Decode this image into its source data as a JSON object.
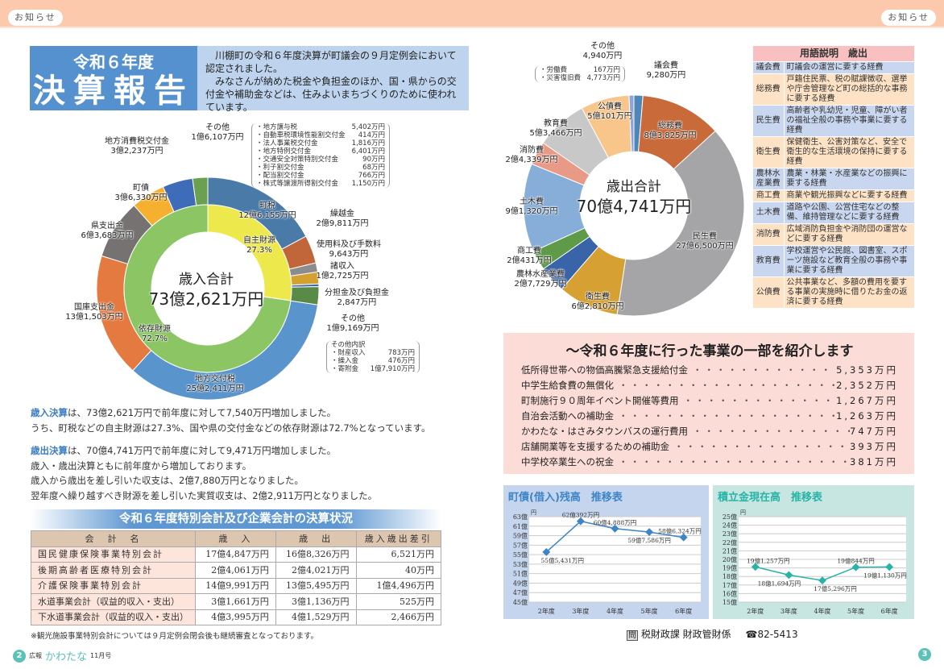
{
  "header": {
    "tag_left": "お知らせ",
    "tag_right": "お知らせ"
  },
  "title": {
    "line1": "令和６年度",
    "line2": "決算報告"
  },
  "intro": {
    "p1": "　川棚町の令和６年度決算が町議会の９月定例会において認定されました。",
    "p2": "　みなさんが納めた税金や負担金のほか、国・県からの交付金や補助金などは、住みよいまちづくりのために使われています。"
  },
  "revenue_chart": {
    "center_label": "歳入合計",
    "total": "73億2,621万円",
    "segments": [
      {
        "name": "町税",
        "value": 126155,
        "text": "12億6,155万円",
        "color": "#4a7aa8"
      },
      {
        "name": "繰越金",
        "value": 29811,
        "text": "2億9,811万円",
        "color": "#c0663a"
      },
      {
        "name": "使用料及び手数料",
        "value": 9643,
        "text": "9,643万円",
        "color": "#8c8c8c"
      },
      {
        "name": "諸収入",
        "value": 12725,
        "text": "1億2,725万円",
        "color": "#d4a030"
      },
      {
        "name": "分担金及び負担金",
        "value": 2847,
        "text": "2,847万円",
        "color": "#3a6ab0"
      },
      {
        "name": "その他",
        "value": 19169,
        "text": "1億9,169万円",
        "color": "#5a8a48"
      },
      {
        "name": "地方交付税",
        "value": 252411,
        "text": "25億2,411万円",
        "color": "#5a94cc"
      },
      {
        "name": "国庫支出金",
        "value": 131503,
        "text": "13億1,503万円",
        "color": "#e57a40"
      },
      {
        "name": "県支出金",
        "value": 63683,
        "text": "6億3,683万円",
        "color": "#767272"
      },
      {
        "name": "町債",
        "value": 36330,
        "text": "3億6,330万円",
        "color": "#f5b030"
      },
      {
        "name": "地方消費税交付金",
        "value": 32237,
        "text": "3億2,237万円",
        "color": "#3e6cb8"
      },
      {
        "name": "その他",
        "value": 16107,
        "text": "1億6,107万円",
        "color": "#6aa050"
      }
    ],
    "inner": [
      {
        "name": "自主財源",
        "percent": 27.3,
        "text": "27.3%",
        "color": "#ede84c"
      },
      {
        "name": "依存財源",
        "percent": 72.7,
        "text": "72.7%",
        "color": "#8cc664"
      }
    ],
    "other_top_breakdown": [
      {
        "name": "・地方譲与税",
        "value": "5,402万円"
      },
      {
        "name": "・自動車税環境性能割交付金",
        "value": "414万円"
      },
      {
        "name": "・法人事業税交付金",
        "value": "1,816万円"
      },
      {
        "name": "・地方特例交付金",
        "value": "6,401万円"
      },
      {
        "name": "・交通安全対策特別交付金",
        "value": "90万円"
      },
      {
        "name": "・利子割交付金",
        "value": "68万円"
      },
      {
        "name": "・配当割交付金",
        "value": "766万円"
      },
      {
        "name": "・株式等譲渡所得割交付金",
        "value": "1,150万円"
      }
    ],
    "other_right_breakdown": {
      "title": "その他内訳",
      "items": [
        {
          "name": "・財産収入",
          "value": "783万円"
        },
        {
          "name": "・繰入金",
          "value": "476万円"
        },
        {
          "name": "・寄附金",
          "value": "1億7,910万円"
        }
      ]
    }
  },
  "expenditure_chart": {
    "center_label": "歳出合計",
    "total": "70億4,741万円",
    "segments": [
      {
        "name": "議会費",
        "value": 9280,
        "text": "9,280万円",
        "color": "#4f86b8"
      },
      {
        "name": "総務費",
        "value": 83825,
        "text": "8億3,825万円",
        "color": "#c86a3a"
      },
      {
        "name": "民生費",
        "value": 276500,
        "text": "27億6,500万円",
        "color": "#a5a5a7"
      },
      {
        "name": "衛生費",
        "value": 62810,
        "text": "6億2,810万円",
        "color": "#d6a032"
      },
      {
        "name": "農林水産業費",
        "value": 27729,
        "text": "2億7,729万円",
        "color": "#3a64a8"
      },
      {
        "name": "商工費",
        "value": 20431,
        "text": "2億431万円",
        "color": "#5f9a48"
      },
      {
        "name": "土木費",
        "value": 91320,
        "text": "9億1,320万円",
        "color": "#86aed8"
      },
      {
        "name": "消防費",
        "value": 24339,
        "text": "2億4,339万円",
        "color": "#e89a86"
      },
      {
        "name": "教育費",
        "value": 53466,
        "text": "5億3,466万円",
        "color": "#c8c8c8"
      },
      {
        "name": "公債費",
        "value": 50101,
        "text": "5億101万円",
        "color": "#f8c68a"
      },
      {
        "name": "その他",
        "value": 4940,
        "text": "4,940万円",
        "color": "#8ea4d6"
      }
    ],
    "other_breakdown": [
      {
        "name": "・労働費",
        "value": "167万円"
      },
      {
        "name": "・災害復旧費",
        "value": "4,773万円"
      }
    ]
  },
  "summary": {
    "rev_head": "歳入決算",
    "rev_line1": "は、73億2,621万円で前年度に対して7,540万円増加しました。",
    "rev_line2": "うち、町税などの自主財源は27.3%、国や県の交付金などの依存財源は72.7%となっています。",
    "exp_head": "歳出決算",
    "exp_line1": "は、70億4,741万円で前年度に対して9,471万円増加しました。",
    "exp_line2": "歳入・歳出決算ともに前年度から増加しております。",
    "exp_line3": "歳入から歳出を差し引いた収支は、2億7,880万円となりました。",
    "exp_line4": "翌年度へ繰り越すべき財源を差し引いた実質収支は、2億2,911万円となりました。"
  },
  "special_accounts": {
    "title": "令和６年度特別会計及び企業会計の決算状況",
    "headers": [
      "会　計　名",
      "歳　入",
      "歳　出",
      "歳入歳出差引"
    ],
    "rows": [
      [
        "国民健康保険事業特別会計",
        "17億4,847万円",
        "16億8,326万円",
        "6,521万円"
      ],
      [
        "後期高齢者医療特別会計",
        "2億4,061万円",
        "2億4,021万円",
        "40万円"
      ],
      [
        "介護保険事業特別会計",
        "14億9,991万円",
        "13億5,495万円",
        "1億4,496万円"
      ],
      [
        "水道事業会計（収益的収入・支出）",
        "3億1,661万円",
        "3億1,136万円",
        "525万円"
      ],
      [
        "下水道事業会計（収益的収入・支出）",
        "4億3,995万円",
        "4億1,529万円",
        "2,466万円"
      ]
    ],
    "note": "※観光施設事業特別会計については９月定例会閉会後も継続審査となっております。"
  },
  "footer_left": {
    "page": "2",
    "label": "広報",
    "name": "かわたな",
    "issue": "11月号"
  },
  "footer_right": {
    "page": "3"
  },
  "glossary": {
    "title": "用語説明　歳出",
    "items": [
      {
        "term": "議会費",
        "desc": "町議会の運営に要する経費"
      },
      {
        "term": "総務費",
        "desc": "戸籍住民票、税の賦課徴収、選挙や庁舎管理など町の総括的な事務に要する経費"
      },
      {
        "term": "民生費",
        "desc": "高齢者や乳幼児・児童、障がい者の福祉全般の事務や事業に要する経費"
      },
      {
        "term": "衛生費",
        "desc": "保健衛生、公害対策など、安全で衛生的な生活環境の保持に要する経費"
      },
      {
        "term": "農林水産業費",
        "desc": "農業・林業・水産業などの振興に要する経費"
      },
      {
        "term": "商工費",
        "desc": "商業や観光振興などに要する経費"
      },
      {
        "term": "土木費",
        "desc": "道路や公園、公営住宅などの整備、維持管理などに要する経費"
      },
      {
        "term": "消防費",
        "desc": "広域消防負担金や消防団の運営などに要する経費"
      },
      {
        "term": "教育費",
        "desc": "学校運営や公民館、図書室、スポーツ施設など教育全般の事務や事業に要する経費"
      },
      {
        "term": "公債費",
        "desc": "公共事業など、多額の費用を要する事業の実施時に借りたお金の返済に要する経費"
      }
    ]
  },
  "projects": {
    "title": "～令和６年度に行った事業の一部を紹介します",
    "items": [
      {
        "name": "低所得世帯への物価高騰緊急支援給付金",
        "amount": "5,353万円"
      },
      {
        "name": "中学生給食費の無償化",
        "amount": "2,352万円"
      },
      {
        "name": "町制施行９０周年イベント開催等費用",
        "amount": "1,267万円"
      },
      {
        "name": "自治会活動への補助金",
        "amount": "1,263万円"
      },
      {
        "name": "かわたな・はさみタウンバスの運行費用",
        "amount": "747万円"
      },
      {
        "name": "店舗開業等を支援するための補助金",
        "amount": "393万円"
      },
      {
        "name": "中学校卒業生への祝金",
        "amount": "381万円"
      }
    ]
  },
  "chart_data": [
    {
      "type": "line",
      "title": "町債(借入)残高　推移表",
      "unit": "円",
      "categories": [
        "2年度",
        "3年度",
        "4年度",
        "5年度",
        "6年度"
      ],
      "values": [
        55.5431,
        62.0392,
        60.4888,
        59.7586,
        58.6324
      ],
      "labels": [
        "55億5,431万円",
        "62億392万円",
        "60億4,888万円",
        "59億7,586万円",
        "58億6,324万円"
      ],
      "yticks": [
        "45億",
        "47億",
        "49億",
        "51億",
        "53億",
        "55億",
        "57億",
        "59億",
        "61億",
        "63億"
      ],
      "ylim": [
        45,
        63
      ],
      "color": "#3d85c6"
    },
    {
      "type": "line",
      "title": "積立金現在高　推移表",
      "unit": "円",
      "categories": [
        "2年度",
        "3年度",
        "4年度",
        "5年度",
        "6年度"
      ],
      "values": [
        19.1257,
        18.1694,
        17.5296,
        19.0844,
        19.113
      ],
      "labels": [
        "19億1,257万円",
        "18億1,694万円",
        "17億5,296万円",
        "19億844万円",
        "19億1,130万円"
      ],
      "yticks": [
        "15億",
        "16億",
        "17億",
        "18億",
        "19億",
        "20億",
        "21億",
        "22億",
        "23億",
        "24億",
        "25億"
      ],
      "ylim": [
        15,
        25
      ],
      "color": "#27b3a6"
    }
  ],
  "contact": {
    "icon": "問",
    "dept": "税財政課 財政管財係",
    "phone_icon": "☎",
    "phone": "82-5413"
  }
}
